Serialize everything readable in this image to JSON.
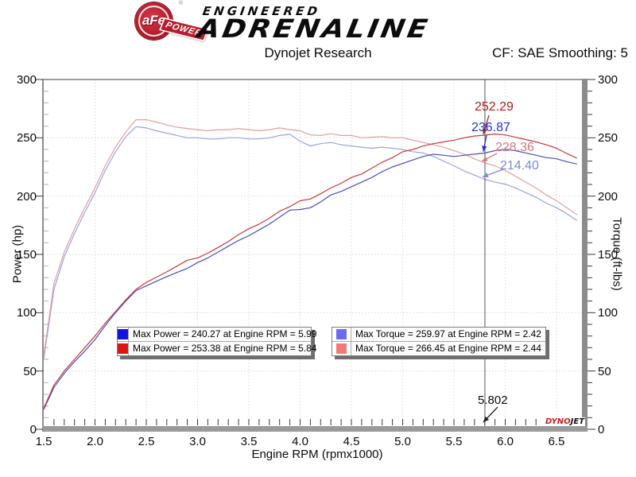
{
  "header": {
    "logo": {
      "badge": "aFe",
      "badge_reg": "®",
      "ribbon": "POWER",
      "line1": "ENGINEERED",
      "line2": "ADRENALINE"
    },
    "title": "Dynojet Research",
    "smoothing": "CF: SAE Smoothing: 5"
  },
  "chart_data": {
    "type": "line",
    "xlabel": "Engine RPM (rpmx1000)",
    "ylabel_left": "Power (hp)",
    "ylabel_right": "Torque (ft-lbs)",
    "xlim": [
      1.5,
      6.75
    ],
    "ylim_left": [
      0,
      300
    ],
    "ylim_right": [
      0,
      300
    ],
    "x_major_ticks": [
      1.5,
      2.0,
      2.5,
      3.0,
      3.5,
      4.0,
      4.5,
      5.0,
      5.5,
      6.0,
      6.5
    ],
    "x_minor_step": 0.1,
    "y_major_ticks": [
      0,
      50,
      100,
      150,
      200,
      250,
      300
    ],
    "y_minor_step": 10,
    "grid": "dotted",
    "x": [
      1.5,
      1.6,
      1.7,
      1.8,
      1.9,
      2.0,
      2.1,
      2.2,
      2.3,
      2.4,
      2.5,
      2.6,
      2.7,
      2.8,
      2.9,
      3.0,
      3.1,
      3.2,
      3.3,
      3.4,
      3.5,
      3.6,
      3.7,
      3.8,
      3.9,
      4.0,
      4.1,
      4.2,
      4.3,
      4.4,
      4.5,
      4.6,
      4.7,
      4.8,
      4.9,
      5.0,
      5.1,
      5.2,
      5.3,
      5.4,
      5.5,
      5.6,
      5.7,
      5.8,
      5.9,
      6.0,
      6.1,
      6.2,
      6.3,
      6.4,
      6.5,
      6.6,
      6.7
    ],
    "series": [
      {
        "name": "torque-blue",
        "unit": "ft-lbs",
        "axis": "right",
        "color": "#9ba4da",
        "values": [
          60,
          120,
          148,
          168,
          186,
          203,
          222,
          238,
          251,
          259.5,
          258.5,
          256,
          254,
          252,
          250,
          250,
          249,
          249,
          250,
          250,
          249,
          249,
          250,
          252,
          253,
          247,
          243,
          245,
          246,
          244,
          243,
          242,
          241,
          242,
          241,
          240,
          238,
          237,
          234,
          230,
          226,
          221.5,
          218,
          214.4,
          212,
          210.3,
          207,
          203,
          199,
          194,
          190,
          185,
          179
        ]
      },
      {
        "name": "torque-red",
        "unit": "ft-lbs",
        "axis": "right",
        "color": "#dfa0a0",
        "values": [
          63,
          125,
          152,
          172,
          190,
          207,
          226,
          242,
          255,
          265.5,
          265.5,
          263.5,
          261,
          259,
          258,
          257,
          256,
          257,
          257,
          258,
          257,
          256,
          257,
          258.5,
          257,
          256,
          252.5,
          252,
          253.5,
          252,
          252,
          250,
          250.5,
          251,
          250,
          250,
          248,
          246,
          244,
          242,
          239,
          236,
          232,
          228.4,
          226,
          222,
          217,
          212,
          207,
          201,
          196,
          190,
          184
        ]
      },
      {
        "name": "power-blue",
        "unit": "hp",
        "axis": "left",
        "color": "#4450b8",
        "values": [
          17,
          36,
          48,
          58,
          67,
          77,
          89,
          100,
          110,
          119,
          123,
          127,
          131,
          134.5,
          138,
          143,
          147,
          152,
          157,
          162,
          166,
          171,
          176,
          182,
          188,
          188.5,
          190,
          195,
          201,
          204,
          208,
          212,
          216,
          221,
          225,
          228,
          231,
          234,
          236,
          235,
          234,
          235,
          236,
          236.9,
          239,
          240.2,
          239,
          237,
          235,
          233,
          232,
          229.5,
          227.5
        ]
      },
      {
        "name": "power-red",
        "unit": "hp",
        "axis": "left",
        "color": "#c23b3b",
        "values": [
          18,
          38,
          50,
          60,
          70,
          80,
          91,
          101,
          111,
          120,
          126,
          130.5,
          135,
          140,
          145,
          147,
          151,
          156,
          161,
          167,
          172,
          176,
          181,
          187,
          191,
          196,
          197.5,
          202,
          207,
          211,
          216,
          219,
          224,
          229,
          233,
          238,
          240,
          243,
          245,
          246.5,
          248,
          250,
          251.5,
          252.3,
          253.3,
          252.5,
          250.5,
          248.5,
          246.5,
          244,
          241,
          236.5,
          232.5
        ]
      }
    ],
    "cursor": {
      "x": 5.802,
      "label": "5.802",
      "readouts": [
        {
          "label": "252.29",
          "value": 252.29,
          "color": "#b22020"
        },
        {
          "label": "236.87",
          "value": 236.87,
          "color": "#2632c8"
        },
        {
          "label": "228.36",
          "value": 228.36,
          "color": "#d47878"
        },
        {
          "label": "214.40",
          "value": 214.4,
          "color": "#7d8ad0"
        }
      ]
    }
  },
  "legend": {
    "entries": [
      {
        "swatch": "#1414e0",
        "text": "Max Power = 240.27 at Engine RPM = 5.99"
      },
      {
        "swatch": "#e01414",
        "text": "Max Power = 253.38 at Engine RPM = 5.84"
      },
      {
        "swatch": "#6b6bf0",
        "text": "Max Torque = 259.97 at Engine RPM = 2.42"
      },
      {
        "swatch": "#f07a7a",
        "text": "Max Torque = 266.45 at Engine RPM = 2.44"
      }
    ]
  },
  "watermark": {
    "dyno": "DYNO",
    "jet": "JET"
  }
}
